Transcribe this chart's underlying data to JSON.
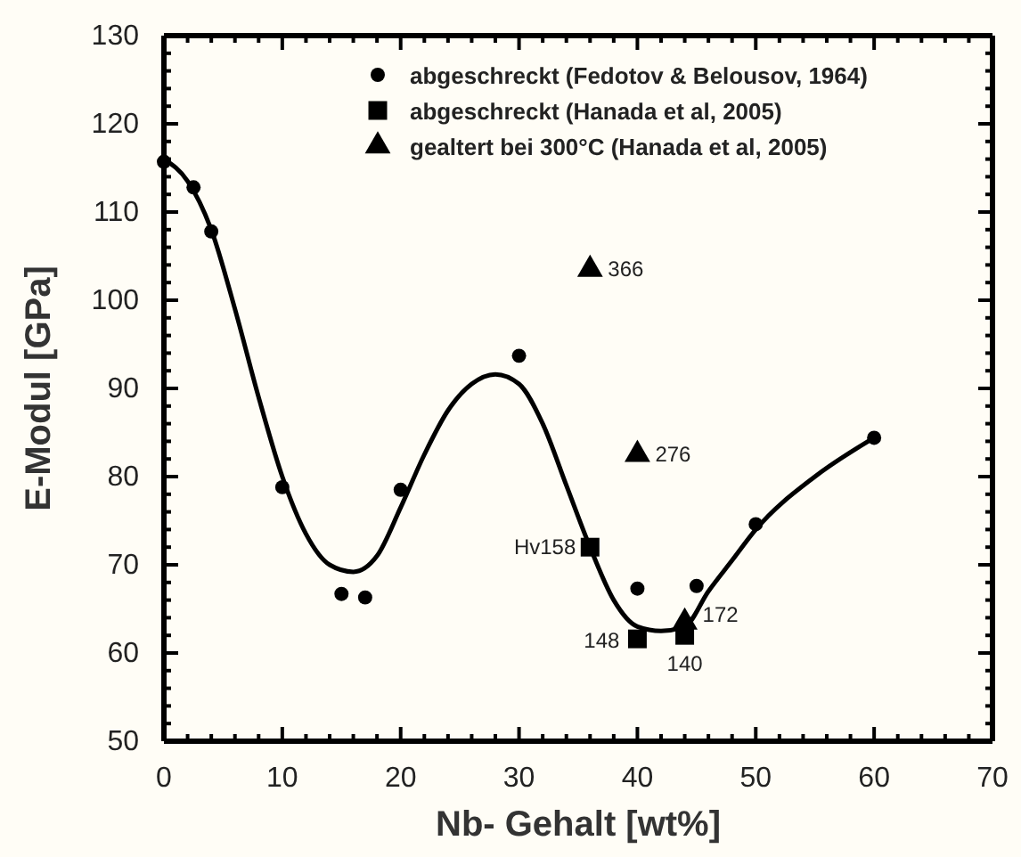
{
  "chart_data": {
    "type": "scatter",
    "xlabel": "Nb- Gehalt [wt%]",
    "ylabel": "E-Modul [GPa]",
    "xlim": [
      0,
      70
    ],
    "ylim": [
      50,
      130
    ],
    "xticks": [
      0,
      {
        "value": 2,
        "label": null
      },
      {
        "value": 4,
        "label": null
      },
      {
        "value": 6,
        "label": null
      },
      {
        "value": 8,
        "label": null
      },
      10,
      {
        "value": 12,
        "label": null
      },
      {
        "value": 14,
        "label": null
      },
      {
        "value": 16,
        "label": null
      },
      {
        "value": 18,
        "label": null
      },
      20,
      {
        "value": 22,
        "label": null
      },
      {
        "value": 24,
        "label": null
      },
      {
        "value": 26,
        "label": null
      },
      {
        "value": 28,
        "label": null
      },
      30,
      {
        "value": 32,
        "label": null
      },
      {
        "value": 34,
        "label": null
      },
      {
        "value": 36,
        "label": null
      },
      {
        "value": 38,
        "label": null
      },
      40,
      {
        "value": 42,
        "label": null
      },
      {
        "value": 44,
        "label": null
      },
      {
        "value": 46,
        "label": null
      },
      {
        "value": 48,
        "label": null
      },
      50,
      {
        "value": 52,
        "label": null
      },
      {
        "value": 54,
        "label": null
      },
      {
        "value": 56,
        "label": null
      },
      {
        "value": 58,
        "label": null
      },
      60,
      {
        "value": 62,
        "label": null
      },
      {
        "value": 64,
        "label": null
      },
      {
        "value": 66,
        "label": null
      },
      {
        "value": 68,
        "label": null
      },
      70
    ],
    "yticks": [
      50,
      {
        "value": 52,
        "label": null
      },
      {
        "value": 54,
        "label": null
      },
      {
        "value": 56,
        "label": null
      },
      {
        "value": 58,
        "label": null
      },
      60,
      {
        "value": 62,
        "label": null
      },
      {
        "value": 64,
        "label": null
      },
      {
        "value": 66,
        "label": null
      },
      {
        "value": 68,
        "label": null
      },
      70,
      {
        "value": 72,
        "label": null
      },
      {
        "value": 74,
        "label": null
      },
      {
        "value": 76,
        "label": null
      },
      {
        "value": 78,
        "label": null
      },
      80,
      {
        "value": 82,
        "label": null
      },
      {
        "value": 84,
        "label": null
      },
      {
        "value": 86,
        "label": null
      },
      {
        "value": 88,
        "label": null
      },
      90,
      {
        "value": 92,
        "label": null
      },
      {
        "value": 94,
        "label": null
      },
      {
        "value": 96,
        "label": null
      },
      {
        "value": 98,
        "label": null
      },
      100,
      {
        "value": 102,
        "label": null
      },
      {
        "value": 104,
        "label": null
      },
      {
        "value": 106,
        "label": null
      },
      {
        "value": 108,
        "label": null
      },
      110,
      {
        "value": 112,
        "label": null
      },
      {
        "value": 114,
        "label": null
      },
      {
        "value": 116,
        "label": null
      },
      {
        "value": 118,
        "label": null
      },
      120,
      {
        "value": 122,
        "label": null
      },
      {
        "value": 124,
        "label": null
      },
      {
        "value": 126,
        "label": null
      },
      {
        "value": 128,
        "label": null
      },
      130
    ],
    "grid": false,
    "legend": "top right",
    "series": [
      {
        "name": "abgeschreckt (Fedotov & Belousov, 1964)",
        "color": "#000000",
        "marker": "circle",
        "x": [
          0,
          2.5,
          4,
          10,
          15,
          17,
          20,
          30,
          40,
          45,
          50,
          60
        ],
        "values": [
          115.7,
          112.8,
          107.8,
          78.8,
          66.7,
          66.3,
          78.5,
          93.7,
          67.3,
          67.6,
          74.6,
          84.4
        ]
      },
      {
        "name": "abgeschreckt (Hanada et al, 2005)",
        "color": "#000000",
        "marker": "square",
        "x": [
          36,
          40,
          44
        ],
        "values": [
          72,
          61.6,
          62
        ]
      },
      {
        "name": "gealtert bei 300°C (Hanada et al, 2005)",
        "color": "#000000",
        "marker": "triangle",
        "x": [
          36,
          40,
          44
        ],
        "values": [
          103.5,
          82.5,
          63.5
        ]
      },
      {
        "type": "line",
        "color": "#000000",
        "marker": "none",
        "x": [
          0,
          2,
          4,
          6,
          8,
          10,
          12,
          14,
          16,
          18,
          20,
          22,
          24,
          26,
          28,
          30,
          32,
          34,
          36,
          38,
          40,
          42,
          44,
          46,
          48,
          50,
          55,
          60
        ],
        "values": [
          116,
          113.5,
          108,
          99,
          89,
          80,
          73.5,
          70,
          69.2,
          71,
          76.5,
          82.5,
          87.5,
          90.5,
          91.6,
          90.5,
          86,
          79,
          72,
          66,
          63,
          62.5,
          63,
          67,
          70.5,
          74,
          80,
          84.4
        ]
      }
    ],
    "annotations": [
      {
        "text": "Hv158",
        "x": 36,
        "y": 72
      },
      {
        "text": "148",
        "x": 40,
        "y": 61.6
      },
      {
        "text": "140",
        "x": 44,
        "y": 62
      },
      {
        "text": "172",
        "x": 44,
        "y": 63.5
      },
      {
        "text": "366",
        "x": 36,
        "y": 103.5
      },
      {
        "text": "276",
        "x": 40,
        "y": 82.5
      }
    ]
  }
}
